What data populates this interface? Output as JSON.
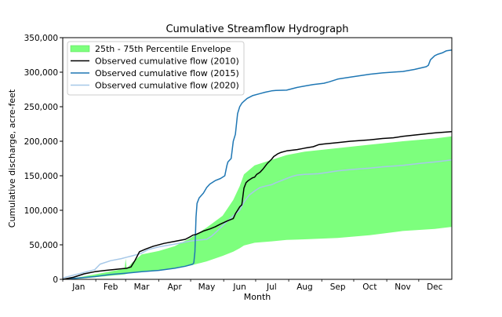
{
  "chart_data": {
    "type": "line",
    "title": "Cumulative Streamflow Hydrograph",
    "xlabel": "Month",
    "ylabel": "Cumulative discharge, acre-feet",
    "xlim": [
      0,
      365
    ],
    "ylim": [
      0,
      350000
    ],
    "grid": false,
    "legend_position": "top-left",
    "x_ticks": [
      {
        "x": 15,
        "label": "Jan"
      },
      {
        "x": 45,
        "label": "Feb"
      },
      {
        "x": 74,
        "label": "Mar"
      },
      {
        "x": 105,
        "label": "Apr"
      },
      {
        "x": 135,
        "label": "May"
      },
      {
        "x": 166,
        "label": "Jun"
      },
      {
        "x": 196,
        "label": "Jul"
      },
      {
        "x": 227,
        "label": "Aug"
      },
      {
        "x": 258,
        "label": "Sep"
      },
      {
        "x": 288,
        "label": "Oct"
      },
      {
        "x": 319,
        "label": "Nov"
      },
      {
        "x": 349,
        "label": "Dec"
      }
    ],
    "y_ticks": [
      {
        "y": 0,
        "label": "0"
      },
      {
        "y": 50000,
        "label": "50,000"
      },
      {
        "y": 100000,
        "label": "100,000"
      },
      {
        "y": 150000,
        "label": "150,000"
      },
      {
        "y": 200000,
        "label": "200,000"
      },
      {
        "y": 250000,
        "label": "250,000"
      },
      {
        "y": 300000,
        "label": "300,000"
      },
      {
        "y": 350000,
        "label": "350,000"
      }
    ],
    "envelope": {
      "name": "25th - 75th Percentile Envelope",
      "color": "#7dff7d",
      "x": [
        0,
        15,
        30,
        50,
        58,
        59,
        60,
        61,
        65,
        74,
        90,
        105,
        120,
        135,
        150,
        160,
        166,
        170,
        180,
        196,
        210,
        227,
        258,
        288,
        319,
        349,
        365
      ],
      "lower": [
        0,
        1000,
        3000,
        6000,
        7000,
        7500,
        8000,
        8500,
        9500,
        11000,
        13000,
        16000,
        20000,
        26000,
        34000,
        40000,
        45000,
        49000,
        53000,
        55000,
        57000,
        58000,
        60000,
        64000,
        70000,
        73000,
        76000
      ],
      "upper": [
        0,
        3000,
        7000,
        13000,
        15000,
        30000,
        16000,
        17000,
        24000,
        36000,
        41000,
        48000,
        60000,
        75000,
        92000,
        115000,
        135000,
        152000,
        165000,
        173000,
        180000,
        185000,
        190000,
        195000,
        200000,
        204000,
        207000
      ]
    },
    "series": [
      {
        "name": "Observed cumulative flow (2010)",
        "color": "#000000",
        "x": [
          0,
          10,
          20,
          30,
          40,
          50,
          60,
          64,
          68,
          72,
          78,
          85,
          95,
          105,
          115,
          120,
          122,
          125,
          132,
          138,
          143,
          148,
          155,
          160,
          162,
          164,
          166,
          168,
          170,
          172,
          174,
          176,
          178,
          180,
          182,
          185,
          188,
          192,
          196,
          198,
          200,
          202,
          205,
          210,
          220,
          227,
          235,
          240,
          245,
          258,
          270,
          288,
          300,
          310,
          319,
          330,
          349,
          365
        ],
        "values": [
          0,
          3000,
          8000,
          11000,
          13000,
          14500,
          16000,
          18000,
          28000,
          40000,
          44000,
          48000,
          52000,
          55000,
          58000,
          62000,
          64000,
          65000,
          70000,
          73000,
          76000,
          80000,
          85000,
          88000,
          95000,
          100000,
          105000,
          108000,
          132000,
          140000,
          143000,
          145000,
          147000,
          148000,
          152000,
          155000,
          160000,
          168000,
          174000,
          178000,
          180000,
          182000,
          184000,
          186000,
          188000,
          190000,
          192000,
          195000,
          196000,
          198000,
          200000,
          202000,
          204000,
          205000,
          207000,
          209000,
          212000,
          214000
        ]
      },
      {
        "name": "Observed cumulative flow (2015)",
        "color": "#1f77b4",
        "x": [
          0,
          15,
          30,
          45,
          60,
          74,
          90,
          105,
          115,
          122,
          123,
          124,
          125,
          126,
          128,
          132,
          135,
          138,
          143,
          148,
          152,
          154,
          155,
          158,
          160,
          162,
          164,
          166,
          168,
          170,
          173,
          178,
          185,
          190,
          196,
          200,
          210,
          215,
          220,
          227,
          235,
          245,
          250,
          258,
          270,
          288,
          300,
          319,
          330,
          341,
          343,
          345,
          349,
          352,
          356,
          360,
          365
        ],
        "values": [
          0,
          2000,
          4000,
          7000,
          9000,
          11000,
          13000,
          16000,
          19000,
          22000,
          24000,
          40000,
          90000,
          110000,
          118000,
          125000,
          133000,
          138000,
          143000,
          146000,
          150000,
          165000,
          170000,
          175000,
          200000,
          210000,
          240000,
          250000,
          255000,
          258000,
          262000,
          266000,
          269000,
          271000,
          273000,
          273500,
          274000,
          276000,
          278000,
          280000,
          282000,
          284000,
          286000,
          290000,
          293000,
          297000,
          299000,
          301000,
          304000,
          308000,
          310000,
          318000,
          324000,
          326000,
          328000,
          331000,
          332000
        ]
      },
      {
        "name": "Observed cumulative flow (2020)",
        "color": "#a6c8e8",
        "x": [
          0,
          10,
          20,
          30,
          35,
          45,
          55,
          60,
          65,
          70,
          74,
          80,
          90,
          105,
          115,
          122,
          135,
          140,
          145,
          155,
          160,
          166,
          170,
          175,
          180,
          185,
          190,
          196,
          200,
          205,
          210,
          215,
          220,
          227,
          240,
          258,
          270,
          288,
          300,
          319,
          335,
          349,
          360,
          365
        ],
        "values": [
          2000,
          6000,
          10000,
          14000,
          22000,
          27000,
          30000,
          32000,
          34000,
          36000,
          38000,
          43000,
          47000,
          51000,
          54000,
          56000,
          58000,
          63000,
          70000,
          85000,
          92000,
          100000,
          112000,
          122000,
          128000,
          133000,
          135000,
          137000,
          140000,
          143000,
          146000,
          149000,
          151000,
          152000,
          153000,
          157000,
          159000,
          161000,
          163000,
          165000,
          168000,
          170000,
          172000,
          173000
        ]
      }
    ]
  }
}
